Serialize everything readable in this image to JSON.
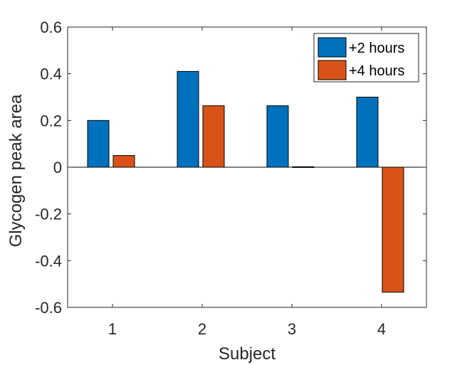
{
  "chart_data": {
    "type": "bar",
    "categories": [
      "1",
      "2",
      "3",
      "4"
    ],
    "series": [
      {
        "name": "+2 hours",
        "color": "#0072BD",
        "values": [
          0.2,
          0.41,
          0.263,
          0.3
        ]
      },
      {
        "name": "+4 hours",
        "color": "#D95319",
        "values": [
          0.05,
          0.263,
          0.002,
          -0.535
        ]
      }
    ],
    "title": "",
    "xlabel": "Subject",
    "ylabel": "Glycogen peak area",
    "ylim": [
      -0.6,
      0.6
    ],
    "yticks": [
      "-0.6",
      "-0.4",
      "-0.2",
      "0",
      "0.2",
      "0.4",
      "0.6"
    ],
    "ytick_values": [
      -0.6,
      -0.4,
      -0.2,
      0,
      0.2,
      0.4,
      0.6
    ],
    "grid": false,
    "legend_position": "top-right"
  }
}
